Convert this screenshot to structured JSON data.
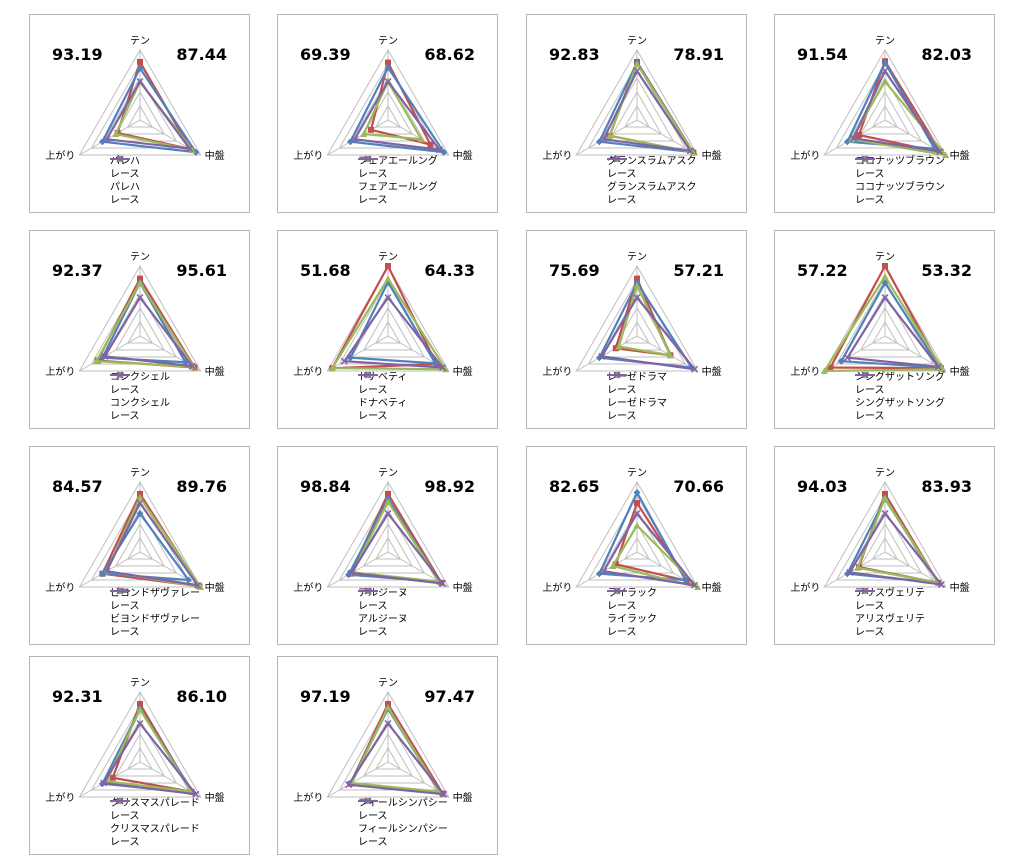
{
  "axis_labels": {
    "top": "テン",
    "left": "上がり",
    "right": "中盤"
  },
  "series_colors": [
    "#c0504d",
    "#4f81bd",
    "#9bbb59",
    "#8064a2"
  ],
  "series_markers": [
    "square",
    "diamond",
    "triangle",
    "x"
  ],
  "chart_data": [
    {
      "type": "radar",
      "left_value": "93.19",
      "right_value": "87.44",
      "legend": [
        "パレハ",
        "レース",
        "パレハ",
        "レース"
      ],
      "series": [
        {
          "name": "パレハ",
          "values": [
            0.83,
            0.37,
            0.83
          ]
        },
        {
          "name": "レース",
          "values": [
            0.74,
            0.62,
            0.92
          ]
        },
        {
          "name": "パレハ",
          "values": [
            0.55,
            0.4,
            0.86
          ]
        },
        {
          "name": "レース",
          "values": [
            0.55,
            0.55,
            0.82
          ]
        }
      ]
    },
    {
      "type": "radar",
      "left_value": "69.39",
      "right_value": "68.62",
      "legend": [
        "フェアエールング",
        "レース",
        "フェアエールング",
        "レース"
      ],
      "series": [
        {
          "name": "フェアエールング",
          "values": [
            0.82,
            0.28,
            0.7
          ]
        },
        {
          "name": "レース",
          "values": [
            0.75,
            0.62,
            0.92
          ]
        },
        {
          "name": "フェアエールング",
          "values": [
            0.55,
            0.4,
            0.55
          ]
        },
        {
          "name": "レース",
          "values": [
            0.55,
            0.55,
            0.85
          ]
        }
      ]
    },
    {
      "type": "radar",
      "left_value": "92.83",
      "right_value": "78.91",
      "legend": [
        "グランスラムアスク",
        "レース",
        "グランスラムアスク",
        "レース"
      ],
      "series": [
        {
          "name": "グランスラムアスク",
          "values": [
            0.83,
            0.45,
            0.93
          ]
        },
        {
          "name": "レース",
          "values": [
            0.82,
            0.62,
            0.92
          ]
        },
        {
          "name": "グランスラムアスク",
          "values": [
            0.8,
            0.45,
            0.92
          ]
        },
        {
          "name": "レース",
          "values": [
            0.7,
            0.55,
            0.88
          ]
        }
      ]
    },
    {
      "type": "radar",
      "left_value": "91.54",
      "right_value": "82.03",
      "legend": [
        "ココナッツブラウン",
        "レース",
        "ココナッツブラウン",
        "レース"
      ],
      "series": [
        {
          "name": "ココナッツブラウン",
          "values": [
            0.84,
            0.43,
            0.92
          ]
        },
        {
          "name": "レース",
          "values": [
            0.82,
            0.62,
            0.82
          ]
        },
        {
          "name": "ココナッツブラウン",
          "values": [
            0.55,
            0.55,
            1.0
          ]
        },
        {
          "name": "レース",
          "values": [
            0.7,
            0.52,
            0.9
          ]
        }
      ]
    },
    {
      "type": "radar",
      "left_value": "92.37",
      "right_value": "95.61",
      "legend": [
        "コンクシェル",
        "レース",
        "コンクシェル",
        "レース"
      ],
      "series": [
        {
          "name": "コンクシェル",
          "values": [
            0.82,
            0.7,
            0.9
          ]
        },
        {
          "name": "レース",
          "values": [
            0.76,
            0.62,
            0.75
          ]
        },
        {
          "name": "コンクシェル",
          "values": [
            0.76,
            0.72,
            0.88
          ]
        },
        {
          "name": "レース",
          "values": [
            0.55,
            0.58,
            0.86
          ]
        }
      ]
    },
    {
      "type": "radar",
      "left_value": "51.68",
      "right_value": "64.33",
      "legend": [
        "ドナベティ",
        "レース",
        "ドナベティ",
        "レース"
      ],
      "series": [
        {
          "name": "ドナベティ",
          "values": [
            1.0,
            0.92,
            0.8
          ]
        },
        {
          "name": "レース",
          "values": [
            0.77,
            0.62,
            0.78
          ]
        },
        {
          "name": "ドナベティ",
          "values": [
            0.82,
            0.92,
            0.95
          ]
        },
        {
          "name": "レース",
          "values": [
            0.55,
            0.72,
            0.9
          ]
        }
      ]
    },
    {
      "type": "radar",
      "left_value": "75.69",
      "right_value": "57.21",
      "legend": [
        "レーゼドラマ",
        "レース",
        "レーゼドラマ",
        "レース"
      ],
      "series": [
        {
          "name": "レーゼドラマ",
          "values": [
            0.82,
            0.35,
            0.55
          ]
        },
        {
          "name": "レース",
          "values": [
            0.76,
            0.62,
            0.9
          ]
        },
        {
          "name": "レーゼドラマ",
          "values": [
            0.72,
            0.3,
            0.55
          ]
        },
        {
          "name": "レース",
          "values": [
            0.55,
            0.58,
            0.95
          ]
        }
      ]
    },
    {
      "type": "radar",
      "left_value": "57.22",
      "right_value": "53.32",
      "legend": [
        "シングザットソング",
        "レース",
        "シングザットソング",
        "レース"
      ],
      "series": [
        {
          "name": "シングザットソング",
          "values": [
            1.0,
            0.9,
            0.92
          ]
        },
        {
          "name": "レース",
          "values": [
            0.76,
            0.72,
            0.9
          ]
        },
        {
          "name": "シングザットソング",
          "values": [
            0.85,
            1.0,
            0.95
          ]
        },
        {
          "name": "レース",
          "values": [
            0.55,
            0.62,
            0.88
          ]
        }
      ]
    },
    {
      "type": "radar",
      "left_value": "84.57",
      "right_value": "89.76",
      "legend": [
        "ビヨンドザヴァレー",
        "レース",
        "ビヨンドザヴァレー",
        "レース"
      ],
      "series": [
        {
          "name": "ビヨンドザヴァレー",
          "values": [
            0.83,
            0.62,
            0.98
          ]
        },
        {
          "name": "レース",
          "values": [
            0.55,
            0.62,
            0.8
          ]
        },
        {
          "name": "ビヨンドザヴァレー",
          "values": [
            0.78,
            0.55,
            1.0
          ]
        },
        {
          "name": "レース",
          "values": [
            0.7,
            0.55,
            0.95
          ]
        }
      ]
    },
    {
      "type": "radar",
      "left_value": "98.84",
      "right_value": "98.92",
      "legend": [
        "アルジーヌ",
        "レース",
        "アルジーヌ",
        "レース"
      ],
      "series": [
        {
          "name": "アルジーヌ",
          "values": [
            0.83,
            0.62,
            0.88
          ]
        },
        {
          "name": "レース",
          "values": [
            0.76,
            0.65,
            0.85
          ]
        },
        {
          "name": "アルジーヌ",
          "values": [
            0.72,
            0.58,
            0.85
          ]
        },
        {
          "name": "レース",
          "values": [
            0.55,
            0.6,
            0.9
          ]
        }
      ]
    },
    {
      "type": "radar",
      "left_value": "82.65",
      "right_value": "70.66",
      "legend": [
        "ライラック",
        "レース",
        "ライラック",
        "レース"
      ],
      "series": [
        {
          "name": "ライラック",
          "values": [
            0.7,
            0.35,
            0.82
          ]
        },
        {
          "name": "レース",
          "values": [
            0.85,
            0.62,
            0.8
          ]
        },
        {
          "name": "ライラック",
          "values": [
            0.38,
            0.4,
            1.0
          ]
        },
        {
          "name": "レース",
          "values": [
            0.55,
            0.55,
            0.95
          ]
        }
      ]
    },
    {
      "type": "radar",
      "left_value": "94.03",
      "right_value": "83.93",
      "legend": [
        "アリスヴェリテ",
        "レース",
        "アリスヴェリテ",
        "レース"
      ],
      "series": [
        {
          "name": "アリスヴェリテ",
          "values": [
            0.83,
            0.43,
            0.88
          ]
        },
        {
          "name": "レース",
          "values": [
            0.76,
            0.62,
            0.88
          ]
        },
        {
          "name": "アリスヴェリテ",
          "values": [
            0.77,
            0.45,
            0.88
          ]
        },
        {
          "name": "レース",
          "values": [
            0.55,
            0.58,
            0.93
          ]
        }
      ]
    },
    {
      "type": "radar",
      "left_value": "92.31",
      "right_value": "86.10",
      "legend": [
        "クリスマスパレード",
        "レース",
        "クリスマスパレード",
        "レース"
      ],
      "series": [
        {
          "name": "クリスマスパレード",
          "values": [
            0.83,
            0.45,
            0.85
          ]
        },
        {
          "name": "レース",
          "values": [
            0.76,
            0.62,
            0.88
          ]
        },
        {
          "name": "クリスマスパレード",
          "values": [
            0.75,
            0.55,
            0.85
          ]
        },
        {
          "name": "レース",
          "values": [
            0.55,
            0.6,
            0.92
          ]
        }
      ]
    },
    {
      "type": "radar",
      "left_value": "97.19",
      "right_value": "97.47",
      "legend": [
        "フィールシンパシー",
        "レース",
        "フィールシンパシー",
        "レース"
      ],
      "series": [
        {
          "name": "フィールシンパシー",
          "values": [
            0.83,
            0.62,
            0.9
          ]
        },
        {
          "name": "レース",
          "values": [
            0.76,
            0.62,
            0.85
          ]
        },
        {
          "name": "フィールシンパシー",
          "values": [
            0.78,
            0.6,
            0.85
          ]
        },
        {
          "name": "レース",
          "values": [
            0.55,
            0.65,
            0.92
          ]
        }
      ]
    }
  ]
}
